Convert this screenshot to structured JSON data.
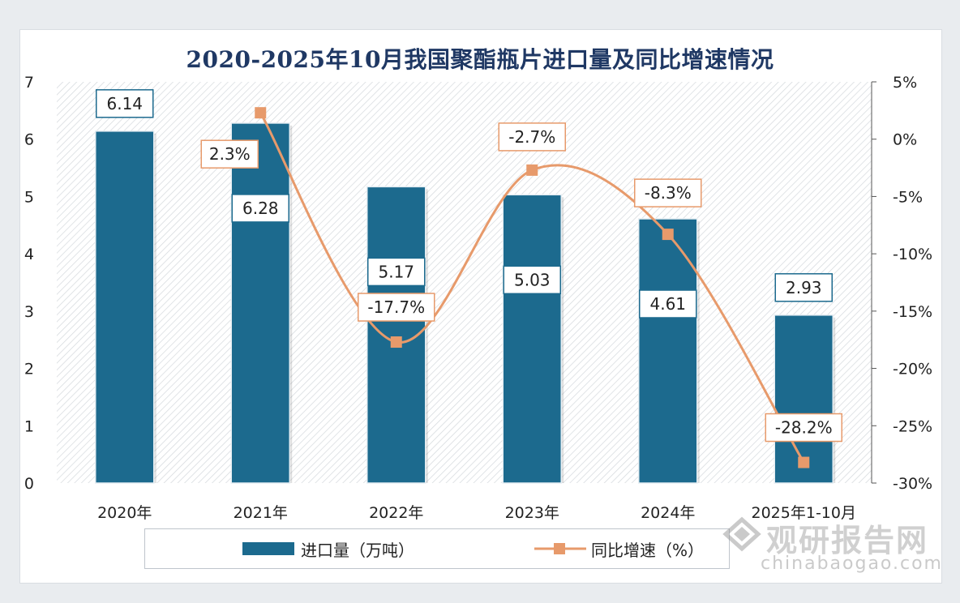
{
  "chart_data": {
    "type": "bar+line",
    "title": "2020-2025年10月我国聚酯瓶片进口量及同比增速情况",
    "categories": [
      "2020年",
      "2021年",
      "2022年",
      "2023年",
      "2024年",
      "2025年1-10月"
    ],
    "series": [
      {
        "name": "进口量（万吨）",
        "type": "bar",
        "axis": "left",
        "values": [
          6.14,
          6.28,
          5.17,
          5.03,
          4.61,
          2.93
        ],
        "labels": [
          "6.14",
          "6.28",
          "5.17",
          "5.03",
          "4.61",
          "2.93"
        ],
        "color": "#1c6a8e"
      },
      {
        "name": "同比增速（%）",
        "type": "line",
        "axis": "right",
        "values": [
          null,
          2.3,
          -17.7,
          -2.7,
          -8.3,
          -28.2
        ],
        "labels": [
          "",
          "2.3%",
          "-17.7%",
          "-2.7%",
          "-8.3%",
          "-28.2%"
        ],
        "color": "#e79a6b"
      }
    ],
    "y_left": {
      "min": 0,
      "max": 7,
      "ticks": [
        "0",
        "1",
        "2",
        "3",
        "4",
        "5",
        "6",
        "7"
      ]
    },
    "y_right": {
      "min": -30,
      "max": 5,
      "ticks": [
        "-30%",
        "-25%",
        "-20%",
        "-15%",
        "-10%",
        "-5%",
        "0%",
        "5%"
      ]
    },
    "legend": {
      "placement": "bottom"
    }
  },
  "legend_labels": {
    "bar": "进口量（万吨）",
    "line": "同比增速（%）"
  },
  "watermark": {
    "brand": "观研报告网",
    "site": "chinabaogao.com"
  },
  "colors": {
    "bar": "#1c6a8e",
    "line": "#e79a6b",
    "title": "#1f3864"
  }
}
